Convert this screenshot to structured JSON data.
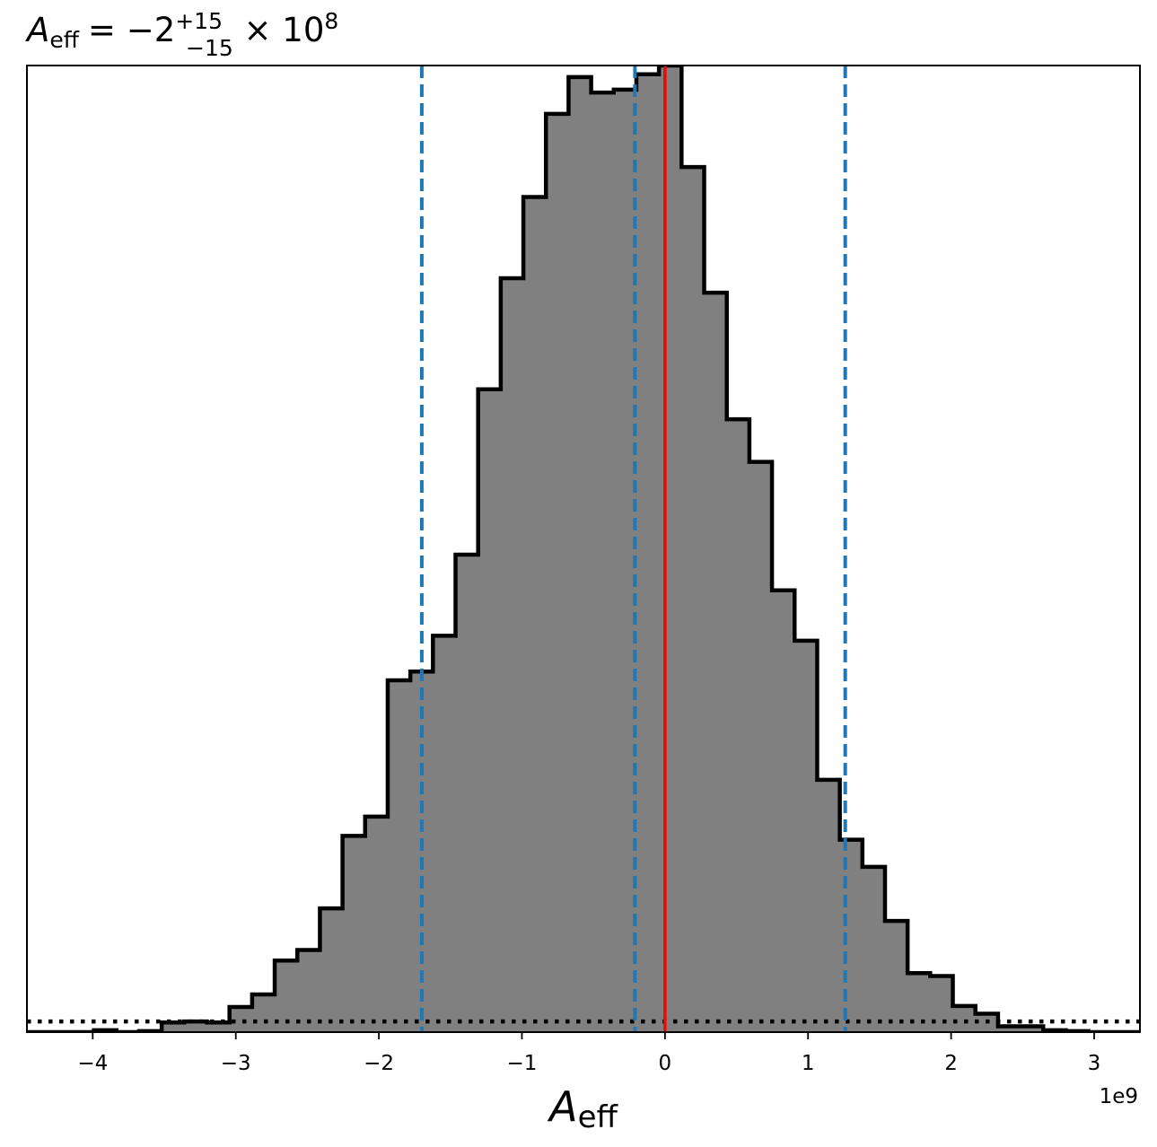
{
  "chart_data": {
    "type": "histogram",
    "title": {
      "symbol": "A",
      "subscript": "eff",
      "equals": "= ",
      "value": "−2",
      "upper": "+15",
      "lower": "−15",
      "times": " × 10",
      "exponent": "8"
    },
    "xlabel": {
      "symbol": "A",
      "subscript": "eff"
    },
    "x_offset_label": "1e9",
    "x_scale": 1000000000,
    "xlim": [
      -4.46,
      3.32
    ],
    "ylim": [
      0,
      1.0
    ],
    "x_ticks": [
      -4,
      -3,
      -2,
      -1,
      0,
      1,
      2,
      3
    ],
    "x_tick_labels": [
      "−4",
      "−3",
      "−2",
      "−1",
      "0",
      "1",
      "2",
      "3"
    ],
    "bin_start": -4.15,
    "bin_width": 0.158,
    "bin_heights": [
      0.0,
      0.002,
      0.0,
      0.001,
      0.01,
      0.011,
      0.01,
      0.026,
      0.039,
      0.074,
      0.085,
      0.128,
      0.203,
      0.223,
      0.364,
      0.373,
      0.41,
      0.494,
      0.665,
      0.78,
      0.864,
      0.95,
      0.988,
      0.972,
      0.975,
      0.991,
      1.0,
      0.895,
      0.765,
      0.634,
      0.59,
      0.457,
      0.405,
      0.261,
      0.199,
      0.171,
      0.115,
      0.061,
      0.058,
      0.027,
      0.019,
      0.006,
      0.006,
      0.002,
      0.001
    ],
    "fill_color": "#808080",
    "edge_color": "#000000",
    "quantile_lines": [
      -1.7,
      -0.21,
      1.26
    ],
    "quantile_color": "#1f77b4",
    "truth_value": 0,
    "truth_color": "#ff0000",
    "baseline_level": 0.011,
    "grid": false
  }
}
